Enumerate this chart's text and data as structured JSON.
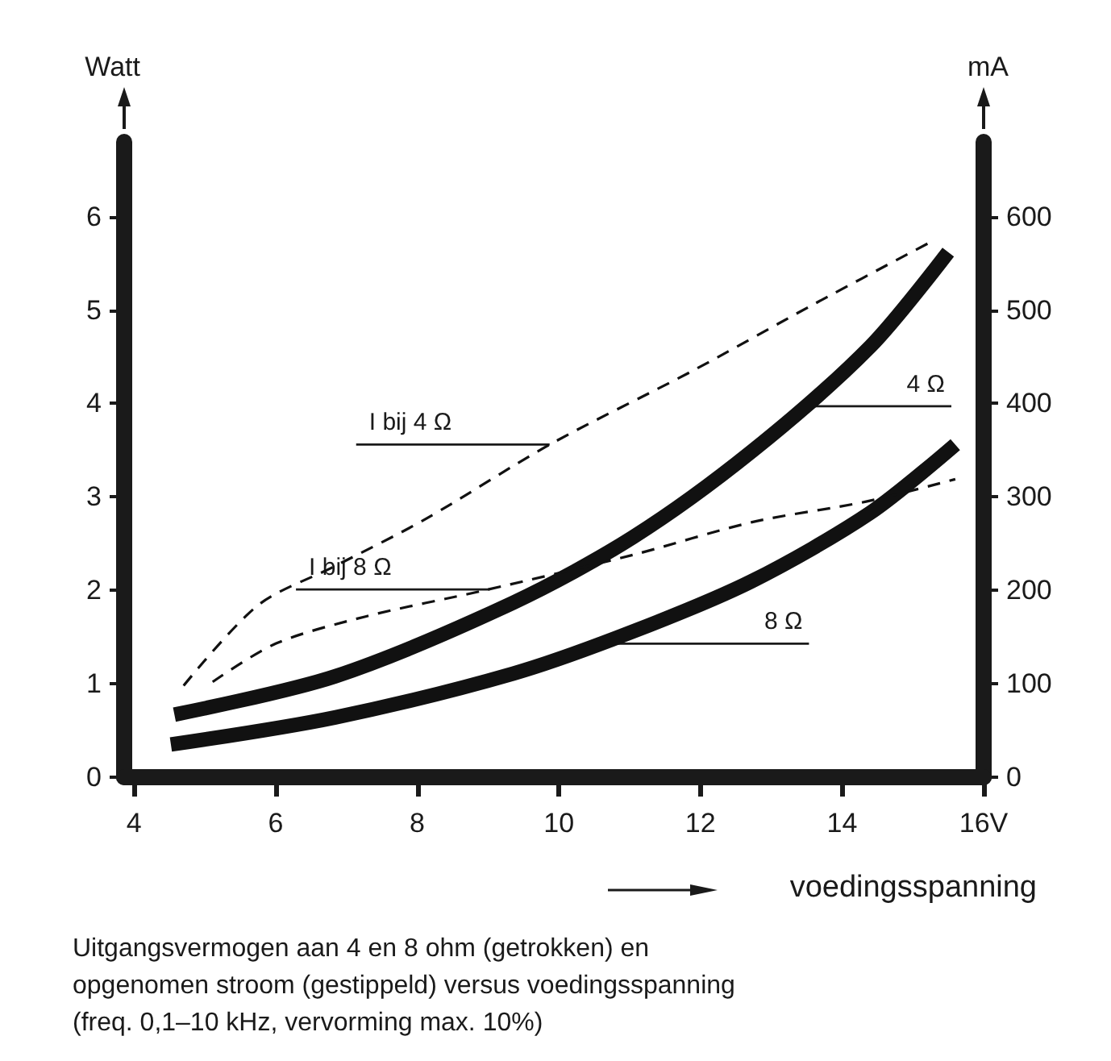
{
  "chart_data": {
    "type": "line",
    "series": [
      {
        "color": "#111111",
        "line_style": "solid",
        "x": [
          4.57,
          6.84,
          9.36,
          11.05,
          12.73,
          14.4,
          15.5
        ],
        "values": [
          0.67,
          1.08,
          1.87,
          2.57,
          3.49,
          4.61,
          5.62
        ]
      },
      {
        "color": "#111111",
        "line_style": "solid",
        "x": [
          4.52,
          6.84,
          9.36,
          11.05,
          12.73,
          14.4,
          15.6
        ],
        "values": [
          0.35,
          0.64,
          1.11,
          1.56,
          2.1,
          2.83,
          3.56
        ]
      },
      {
        "color": "#111111",
        "line_style": "dashed",
        "axis": "y2",
        "x": [
          4.7,
          5.75,
          6.84,
          8.11,
          9.87,
          11.89,
          13.57,
          15.23
        ],
        "values": [
          98,
          184,
          226,
          276,
          356,
          435,
          505,
          572
        ]
      },
      {
        "color": "#111111",
        "line_style": "dashed",
        "axis": "y2",
        "x": [
          5.11,
          6.0,
          7.27,
          8.95,
          11.05,
          12.73,
          14.34,
          15.6
        ],
        "values": [
          102,
          143,
          172,
          200,
          238,
          273,
          295,
          319
        ]
      }
    ],
    "xlabel": "voedingsspanning",
    "ylabel": "Watt",
    "y2label": "mA",
    "xlim": [
      3.86,
      16
    ],
    "xticks": [
      4,
      6,
      8,
      10,
      12,
      14,
      {
        "value": 16,
        "label": "16V"
      }
    ],
    "ylim": [
      0,
      6.8
    ],
    "yticks": [
      0,
      1,
      2,
      3,
      4,
      5,
      6
    ],
    "y2lim": [
      0,
      680
    ],
    "y2ticks": [
      0,
      100,
      200,
      300,
      400,
      500,
      600
    ],
    "grid": false,
    "marker": "none",
    "annotations": [
      {
        "text": "I bij 4 Ω",
        "x": 9.87,
        "y": 3.56
      },
      {
        "text": "I bij 8 Ω",
        "x": 9.02,
        "y": 2.01
      },
      {
        "text": "4 Ω",
        "x": 13.57,
        "y": 3.97
      },
      {
        "text": "8 Ω",
        "x": 10.8,
        "y": 1.43
      },
      "Uitgangsvermogen aan 4 en 8 ohm (getrokken) en\nopgenomen stroom (gestippeld) versus voedingsspanning\n(freq. 0,1–10 kHz, vervorming max. 10%)"
    ]
  }
}
